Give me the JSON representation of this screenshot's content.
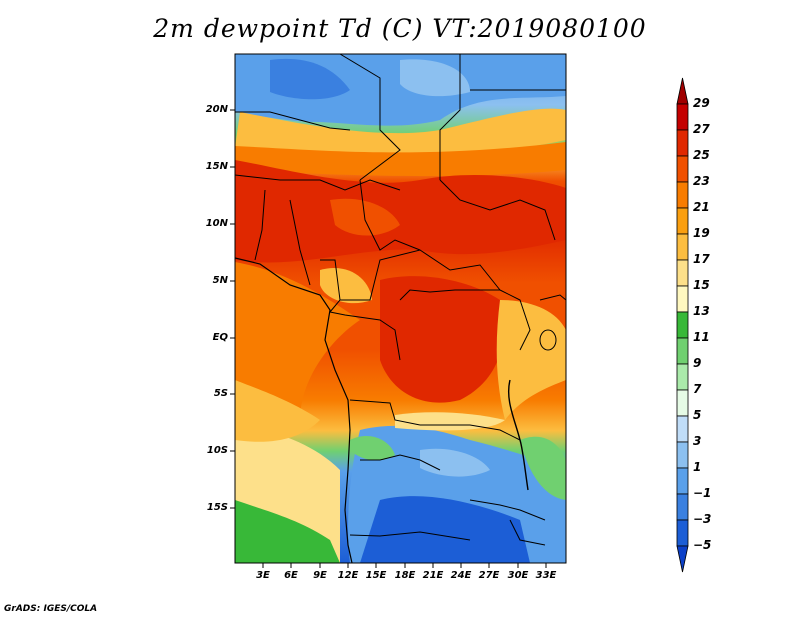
{
  "title": "2m dewpoint Td (C) VT:2019080100",
  "lat_labels": [
    "20N",
    "15N",
    "10N",
    "5N",
    "EQ",
    "5S",
    "10S",
    "15S"
  ],
  "lon_labels": [
    "3E",
    "6E",
    "9E",
    "12E",
    "15E",
    "18E",
    "21E",
    "24E",
    "27E",
    "30E",
    "33E"
  ],
  "colorbar": {
    "levels": [
      "29",
      "27",
      "25",
      "23",
      "21",
      "19",
      "17",
      "15",
      "13",
      "11",
      "9",
      "7",
      "5",
      "3",
      "1",
      "−1",
      "−3",
      "−5"
    ],
    "colors": [
      "#a00000",
      "#c40000",
      "#e02800",
      "#f05000",
      "#f87c00",
      "#fa9f10",
      "#fcbd40",
      "#fde08a",
      "#fff8c0",
      "#38b838",
      "#70d070",
      "#aaeaaa",
      "#e6fbe6",
      "#c0ddf8",
      "#8cc0f0",
      "#5aa0ea",
      "#3a80e0",
      "#1c5ed6",
      "#0c40c8"
    ]
  },
  "credit": "GrADS: IGES/COLA"
}
